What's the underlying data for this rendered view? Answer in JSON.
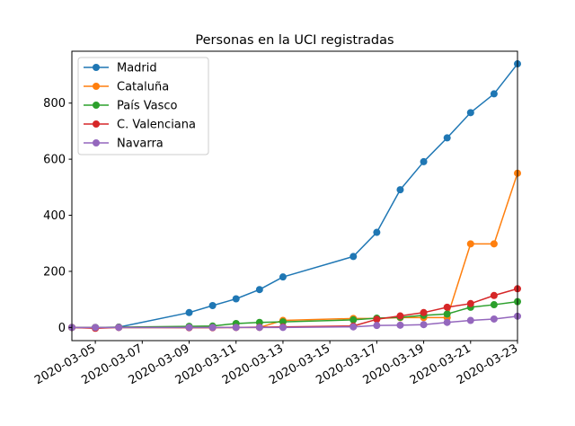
{
  "chart_data": {
    "type": "line",
    "title": "Personas en la UCI registradas",
    "xlabel": "",
    "ylabel": "",
    "x_ticks": [
      "2020-03-05",
      "2020-03-07",
      "2020-03-09",
      "2020-03-11",
      "2020-03-13",
      "2020-03-15",
      "2020-03-17",
      "2020-03-19",
      "2020-03-21",
      "2020-03-23"
    ],
    "y_ticks": [
      0,
      200,
      400,
      600,
      800
    ],
    "xlim": [
      "2020-03-04",
      "2020-03-23"
    ],
    "ylim": [
      -47,
      985
    ],
    "legend_position": "upper-left",
    "grid": false,
    "series": [
      {
        "name": "Madrid",
        "color": "#1f77b4",
        "x": [
          "2020-03-04",
          "2020-03-05",
          "2020-03-06",
          "2020-03-09",
          "2020-03-10",
          "2020-03-11",
          "2020-03-12",
          "2020-03-13",
          "2020-03-16",
          "2020-03-17",
          "2020-03-18",
          "2020-03-19",
          "2020-03-20",
          "2020-03-21",
          "2020-03-22",
          "2020-03-23"
        ],
        "values": [
          0,
          0,
          1,
          53,
          78,
          102,
          135,
          180,
          253,
          339,
          491,
          591,
          676,
          766,
          833,
          940
        ]
      },
      {
        "name": "Cataluña",
        "color": "#ff7f0e",
        "x": [
          "2020-03-04",
          "2020-03-05",
          "2020-03-06",
          "2020-03-09",
          "2020-03-10",
          "2020-03-11",
          "2020-03-12",
          "2020-03-13",
          "2020-03-16",
          "2020-03-17",
          "2020-03-18",
          "2020-03-19",
          "2020-03-20",
          "2020-03-21",
          "2020-03-22",
          "2020-03-23"
        ],
        "values": [
          0,
          0,
          0,
          0,
          0,
          0,
          0,
          25,
          32,
          32,
          35,
          35,
          35,
          298,
          298,
          550
        ]
      },
      {
        "name": "País Vasco",
        "color": "#2ca02c",
        "x": [
          "2020-03-04",
          "2020-03-05",
          "2020-03-06",
          "2020-03-09",
          "2020-03-10",
          "2020-03-11",
          "2020-03-12",
          "2020-03-13",
          "2020-03-16",
          "2020-03-17",
          "2020-03-18",
          "2020-03-19",
          "2020-03-20",
          "2020-03-21",
          "2020-03-22",
          "2020-03-23"
        ],
        "values": [
          0,
          0,
          1,
          4,
          5,
          14,
          18,
          20,
          27,
          33,
          36,
          43,
          48,
          72,
          81,
          92
        ]
      },
      {
        "name": "C. Valenciana",
        "color": "#d62728",
        "x": [
          "2020-03-04",
          "2020-03-05",
          "2020-03-06",
          "2020-03-09",
          "2020-03-10",
          "2020-03-11",
          "2020-03-12",
          "2020-03-13",
          "2020-03-16",
          "2020-03-17",
          "2020-03-18",
          "2020-03-19",
          "2020-03-20",
          "2020-03-21",
          "2020-03-22",
          "2020-03-23"
        ],
        "values": [
          0,
          -3,
          0,
          -1,
          -1,
          0,
          1,
          2,
          5,
          29,
          41,
          53,
          72,
          85,
          114,
          138
        ]
      },
      {
        "name": "Navarra",
        "color": "#9467bd",
        "x": [
          "2020-03-04",
          "2020-03-05",
          "2020-03-06",
          "2020-03-09",
          "2020-03-10",
          "2020-03-11",
          "2020-03-12",
          "2020-03-13",
          "2020-03-16",
          "2020-03-17",
          "2020-03-18",
          "2020-03-19",
          "2020-03-20",
          "2020-03-21",
          "2020-03-22",
          "2020-03-23"
        ],
        "values": [
          0,
          0,
          0,
          0,
          0,
          0,
          0,
          0,
          2,
          7,
          8,
          10,
          18,
          25,
          30,
          40
        ]
      }
    ]
  }
}
